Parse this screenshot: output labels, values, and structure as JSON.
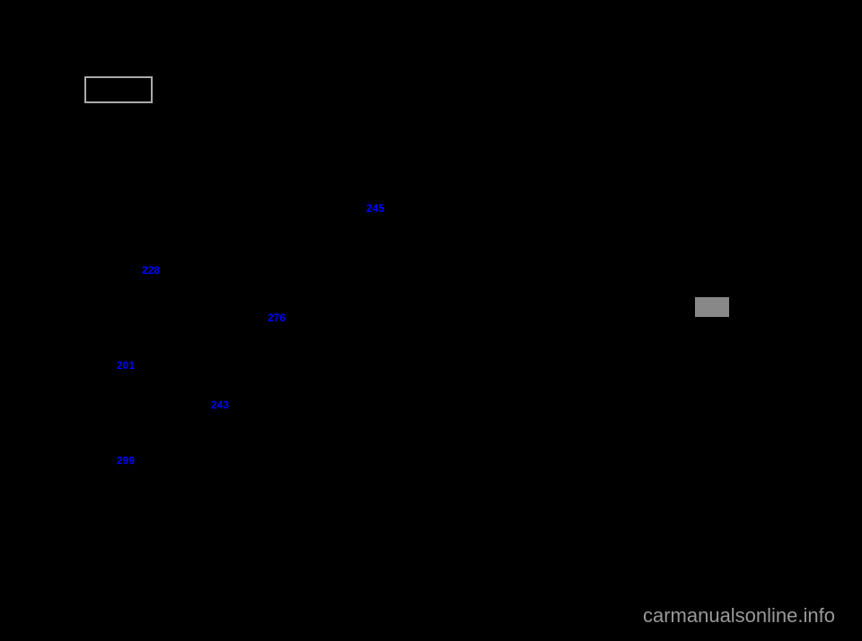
{
  "links": {
    "link_245": "245",
    "link_228": "228",
    "link_276": "276",
    "link_201": "201",
    "link_243": "243",
    "link_299": "299"
  },
  "watermark": "carmanualsonline.info",
  "colors": {
    "background": "#000000",
    "link_color": "#0000ff",
    "box_border": "#aaaaaa",
    "gray_box": "#888888",
    "watermark_color": "#999999"
  }
}
